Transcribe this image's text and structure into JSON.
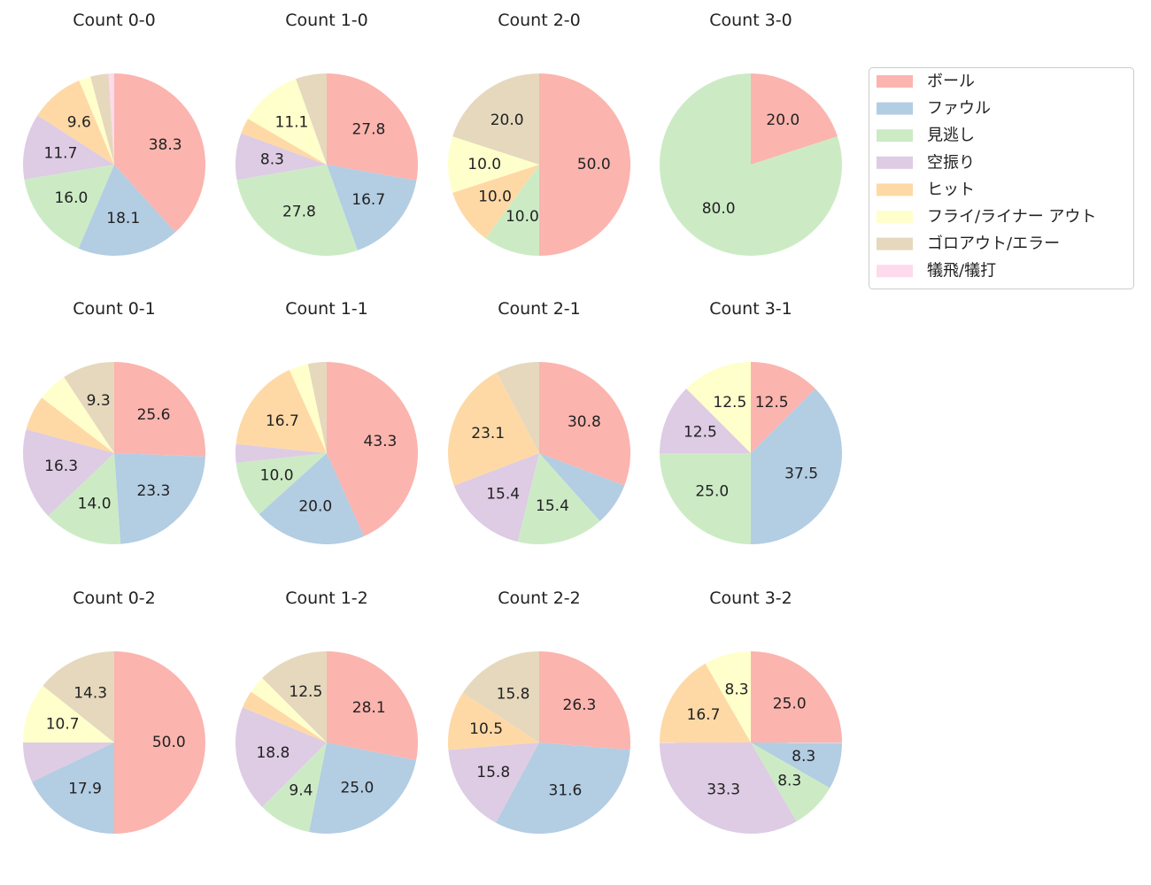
{
  "categories": [
    "ボール",
    "ファウル",
    "見逃し",
    "空振り",
    "ヒット",
    "フライ/ライナー アウト",
    "ゴロアウト/エラー",
    "犠飛/犠打"
  ],
  "colors": [
    "#fbb4ae",
    "#b3cde3",
    "#ccebc5",
    "#decbe4",
    "#fed9a6",
    "#ffffcc",
    "#e5d8bd",
    "#fddaec"
  ],
  "chart_data": [
    {
      "type": "pie",
      "title": "Count 0-0",
      "values": [
        38.3,
        18.1,
        16.0,
        11.7,
        9.6,
        2.1,
        3.2,
        1.0
      ],
      "labels": [
        "38.3",
        "18.1",
        "16.0",
        "11.7",
        "9.6",
        "",
        "",
        ""
      ]
    },
    {
      "type": "pie",
      "title": "Count 1-0",
      "values": [
        27.8,
        16.7,
        27.8,
        8.3,
        2.8,
        11.1,
        5.5,
        0
      ],
      "labels": [
        "27.8",
        "16.7",
        "27.8",
        "8.3",
        "",
        "11.1",
        "",
        ""
      ]
    },
    {
      "type": "pie",
      "title": "Count 2-0",
      "values": [
        50.0,
        0,
        10.0,
        0,
        10.0,
        10.0,
        20.0,
        0
      ],
      "labels": [
        "50.0",
        "",
        "10.0",
        "",
        "10.0",
        "10.0",
        "20.0",
        ""
      ]
    },
    {
      "type": "pie",
      "title": "Count 3-0",
      "values": [
        20.0,
        0,
        80.0,
        0,
        0,
        0,
        0,
        0
      ],
      "labels": [
        "20.0",
        "",
        "80.0",
        "",
        "",
        "",
        "",
        ""
      ]
    },
    {
      "type": "pie",
      "title": "Count 0-1",
      "values": [
        25.6,
        23.3,
        14.0,
        16.3,
        6.2,
        5.3,
        9.3,
        0
      ],
      "labels": [
        "25.6",
        "23.3",
        "14.0",
        "16.3",
        "",
        "",
        "9.3",
        ""
      ]
    },
    {
      "type": "pie",
      "title": "Count 1-1",
      "values": [
        43.3,
        20.0,
        10.0,
        3.3,
        16.7,
        3.4,
        3.3,
        0
      ],
      "labels": [
        "43.3",
        "20.0",
        "10.0",
        "",
        "16.7",
        "",
        "",
        ""
      ]
    },
    {
      "type": "pie",
      "title": "Count 2-1",
      "values": [
        30.8,
        7.6,
        15.4,
        15.4,
        23.1,
        0,
        7.7,
        0
      ],
      "labels": [
        "30.8",
        "",
        "15.4",
        "15.4",
        "23.1",
        "",
        "",
        ""
      ]
    },
    {
      "type": "pie",
      "title": "Count 3-1",
      "values": [
        12.5,
        37.5,
        25.0,
        12.5,
        0,
        12.5,
        0,
        0
      ],
      "labels": [
        "12.5",
        "37.5",
        "25.0",
        "12.5",
        "",
        "12.5",
        "",
        ""
      ]
    },
    {
      "type": "pie",
      "title": "Count 0-2",
      "values": [
        50.0,
        17.9,
        0,
        7.1,
        0,
        10.7,
        14.3,
        0
      ],
      "labels": [
        "50.0",
        "17.9",
        "",
        "",
        "",
        "10.7",
        "14.3",
        ""
      ]
    },
    {
      "type": "pie",
      "title": "Count 1-2",
      "values": [
        28.1,
        25.0,
        9.4,
        18.8,
        3.1,
        3.1,
        12.5,
        0
      ],
      "labels": [
        "28.1",
        "25.0",
        "9.4",
        "18.8",
        "",
        "",
        "12.5",
        ""
      ]
    },
    {
      "type": "pie",
      "title": "Count 2-2",
      "values": [
        26.3,
        31.6,
        0,
        15.8,
        10.5,
        0,
        15.8,
        0
      ],
      "labels": [
        "26.3",
        "31.6",
        "",
        "15.8",
        "10.5",
        "",
        "15.8",
        ""
      ]
    },
    {
      "type": "pie",
      "title": "Count 3-2",
      "values": [
        25.0,
        8.3,
        8.3,
        33.3,
        16.7,
        8.3,
        0,
        0
      ],
      "labels": [
        "25.0",
        "8.3",
        "8.3",
        "33.3",
        "16.7",
        "8.3",
        "",
        ""
      ]
    }
  ]
}
